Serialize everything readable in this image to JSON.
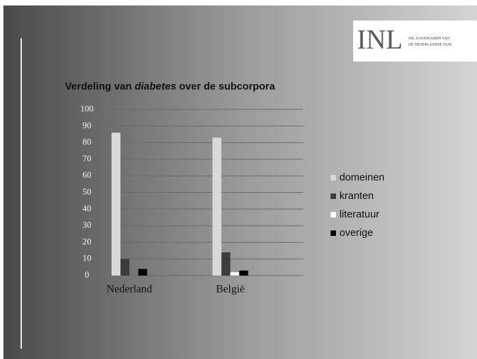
{
  "chart_data": {
    "type": "bar",
    "title": [
      "Verdeling van ",
      "diabetes",
      " over de subcorpora"
    ],
    "logo": {
      "mark": "INL",
      "lines": [
        "INL SCHATKAMER VAN",
        "DE NEDERLANDSE TAAL"
      ]
    },
    "categories": [
      "Nederland",
      "België"
    ],
    "series": [
      {
        "name": "domeinen",
        "color": "#d9d9d9",
        "values": [
          86,
          83
        ]
      },
      {
        "name": "kranten",
        "color": "#3c3c3c",
        "values": [
          10,
          14
        ]
      },
      {
        "name": "literatuur",
        "color": "#ffffff",
        "values": [
          0,
          2
        ]
      },
      {
        "name": "overige",
        "color": "#000000",
        "values": [
          4,
          3
        ]
      }
    ],
    "ylim": [
      0,
      100
    ],
    "yticks": [
      0,
      10,
      20,
      30,
      40,
      50,
      60,
      70,
      80,
      90,
      100
    ],
    "grid": true,
    "legend": "right"
  }
}
